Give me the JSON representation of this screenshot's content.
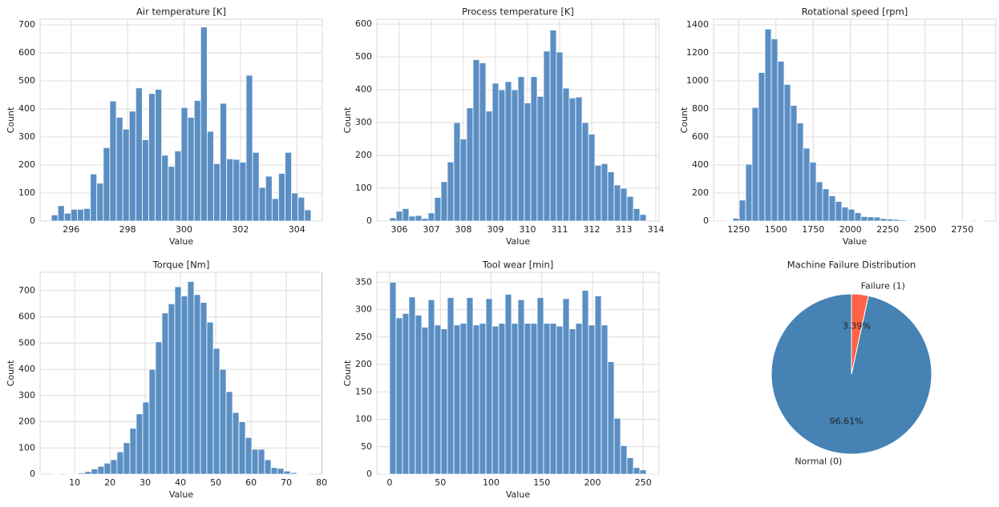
{
  "chart_data": [
    {
      "type": "histogram",
      "title": "Air temperature [K]",
      "xlabel": "Value",
      "ylabel": "Count",
      "color": "#5b8fc3",
      "grid": true,
      "bins": [
        295.3,
        295.53,
        295.76,
        295.99,
        296.22,
        296.45,
        296.68,
        296.91,
        297.14,
        297.37,
        297.6,
        297.83,
        298.06,
        298.29,
        298.52,
        298.75,
        298.98,
        299.21,
        299.44,
        299.67,
        299.9,
        300.13,
        300.36,
        300.59,
        300.82,
        301.05,
        301.28,
        301.51,
        301.74,
        301.97,
        302.2,
        302.43,
        302.66,
        302.89,
        303.12,
        303.35,
        303.58,
        303.81,
        304.04,
        304.27,
        304.5
      ],
      "values": [
        22,
        55,
        28,
        42,
        42,
        45,
        168,
        135,
        262,
        428,
        370,
        328,
        392,
        475,
        290,
        455,
        470,
        235,
        195,
        250,
        405,
        370,
        430,
        692,
        320,
        205,
        420,
        222,
        220,
        210,
        520,
        245,
        120,
        160,
        80,
        170,
        245,
        100,
        85,
        40
      ],
      "xlim": [
        294.9,
        304.9
      ],
      "xticks": [
        296,
        298,
        300,
        302,
        304
      ],
      "ylim": [
        0,
        720
      ],
      "yticks": [
        0,
        100,
        200,
        300,
        400,
        500,
        600,
        700
      ]
    },
    {
      "type": "histogram",
      "title": "Process temperature [K]",
      "xlabel": "Value",
      "ylabel": "Count",
      "color": "#5b8fc3",
      "grid": true,
      "bins": [
        305.7,
        305.9,
        306.1,
        306.3,
        306.5,
        306.7,
        306.9,
        307.1,
        307.3,
        307.5,
        307.7,
        307.9,
        308.1,
        308.3,
        308.5,
        308.7,
        308.9,
        309.1,
        309.3,
        309.5,
        309.7,
        309.9,
        310.1,
        310.3,
        310.5,
        310.7,
        310.9,
        311.1,
        311.3,
        311.5,
        311.7,
        311.9,
        312.1,
        312.3,
        312.5,
        312.7,
        312.9,
        313.1,
        313.3,
        313.5,
        313.7
      ],
      "values": [
        10,
        30,
        38,
        15,
        17,
        8,
        25,
        72,
        120,
        180,
        300,
        250,
        345,
        492,
        482,
        335,
        420,
        400,
        425,
        400,
        440,
        360,
        440,
        380,
        518,
        582,
        515,
        405,
        375,
        378,
        300,
        265,
        170,
        175,
        150,
        110,
        100,
        75,
        38,
        20
      ],
      "xlim": [
        305.3,
        314.1
      ],
      "xticks": [
        306,
        307,
        308,
        309,
        310,
        311,
        312,
        313,
        314
      ],
      "ylim": [
        0,
        615
      ],
      "yticks": [
        0,
        100,
        200,
        300,
        400,
        500,
        600
      ]
    },
    {
      "type": "histogram",
      "title": "Rotational speed [rpm]",
      "xlabel": "Value",
      "ylabel": "Count",
      "color": "#5b8fc3",
      "grid": true,
      "bins": [
        1168,
        1211,
        1254,
        1297,
        1340,
        1383,
        1426,
        1469,
        1512,
        1555,
        1598,
        1641,
        1684,
        1727,
        1770,
        1813,
        1856,
        1899,
        1942,
        1985,
        2028,
        2071,
        2114,
        2157,
        2200,
        2243,
        2286,
        2329,
        2372,
        2415,
        2458,
        2501,
        2544,
        2587,
        2630,
        2673,
        2716,
        2759,
        2802,
        2845,
        2888
      ],
      "values": [
        3,
        20,
        150,
        405,
        810,
        1060,
        1370,
        1300,
        1140,
        975,
        825,
        700,
        520,
        420,
        280,
        230,
        180,
        140,
        100,
        85,
        60,
        32,
        30,
        28,
        18,
        15,
        12,
        8,
        5,
        4,
        5,
        2,
        1,
        2,
        1,
        4,
        1,
        1,
        0,
        1
      ],
      "xlim": [
        1082,
        2974
      ],
      "xticks": [
        1250,
        1500,
        1750,
        2000,
        2250,
        2500,
        2750
      ],
      "ylim": [
        0,
        1440
      ],
      "yticks": [
        0,
        200,
        400,
        600,
        800,
        1000,
        1200,
        1400
      ]
    },
    {
      "type": "histogram",
      "title": "Torque [Nm]",
      "xlabel": "Value",
      "ylabel": "Count",
      "color": "#5b8fc3",
      "grid": true,
      "bins": [
        3.8,
        5.62,
        7.44,
        9.26,
        11.08,
        12.9,
        14.72,
        16.54,
        18.36,
        20.18,
        22,
        23.82,
        25.64,
        27.46,
        29.28,
        31.1,
        32.92,
        34.74,
        36.56,
        38.38,
        40.2,
        42.02,
        43.84,
        45.66,
        47.48,
        49.3,
        51.12,
        52.94,
        54.76,
        56.58,
        58.4,
        60.22,
        62.04,
        63.86,
        65.68,
        67.5,
        69.32,
        71.14,
        72.96,
        74.78,
        76.6
      ],
      "values": [
        1,
        0,
        1,
        2,
        5,
        10,
        20,
        30,
        42,
        55,
        85,
        120,
        175,
        230,
        275,
        400,
        505,
        615,
        650,
        715,
        680,
        735,
        685,
        655,
        580,
        480,
        400,
        315,
        235,
        200,
        140,
        95,
        95,
        55,
        25,
        22,
        12,
        6,
        2,
        1
      ],
      "xlim": [
        0.2,
        80.2
      ],
      "xticks": [
        10,
        20,
        30,
        40,
        50,
        60,
        70,
        80
      ],
      "ylim": [
        0,
        770
      ],
      "yticks": [
        0,
        100,
        200,
        300,
        400,
        500,
        600,
        700
      ]
    },
    {
      "type": "histogram",
      "title": "Tool wear [min]",
      "xlabel": "Value",
      "ylabel": "Count",
      "color": "#5b8fc3",
      "grid": true,
      "bins": [
        0,
        6.325,
        12.65,
        18.975,
        25.3,
        31.625,
        37.95,
        44.275,
        50.6,
        56.925,
        63.25,
        69.575,
        75.9,
        82.225,
        88.55,
        94.875,
        101.2,
        107.525,
        113.85,
        120.175,
        126.5,
        132.825,
        139.15,
        145.475,
        151.8,
        158.125,
        164.45,
        170.775,
        177.1,
        183.425,
        189.75,
        196.075,
        202.4,
        208.725,
        215.05,
        221.375,
        227.7,
        234.025,
        240.35,
        246.675,
        253
      ],
      "values": [
        350,
        285,
        293,
        323,
        290,
        268,
        318,
        272,
        265,
        322,
        272,
        275,
        322,
        272,
        275,
        320,
        270,
        275,
        328,
        275,
        318,
        275,
        275,
        322,
        275,
        275,
        270,
        320,
        265,
        275,
        335,
        272,
        325,
        272,
        205,
        102,
        52,
        30,
        12,
        8
      ],
      "xlim": [
        -12.65,
        265.65
      ],
      "xticks": [
        0,
        50,
        100,
        150,
        200,
        250
      ],
      "ylim": [
        0,
        368
      ],
      "yticks": [
        0,
        50,
        100,
        150,
        200,
        250,
        300,
        350
      ]
    },
    {
      "type": "pie",
      "title": "Machine Failure Distribution",
      "categories": [
        "Normal (0)",
        "Failure (1)"
      ],
      "values": [
        96.61,
        3.39
      ],
      "value_labels": [
        "96.61%",
        "3.39%"
      ],
      "colors": [
        "#4682b4",
        "#ff6347"
      ],
      "startangle": 90
    }
  ]
}
